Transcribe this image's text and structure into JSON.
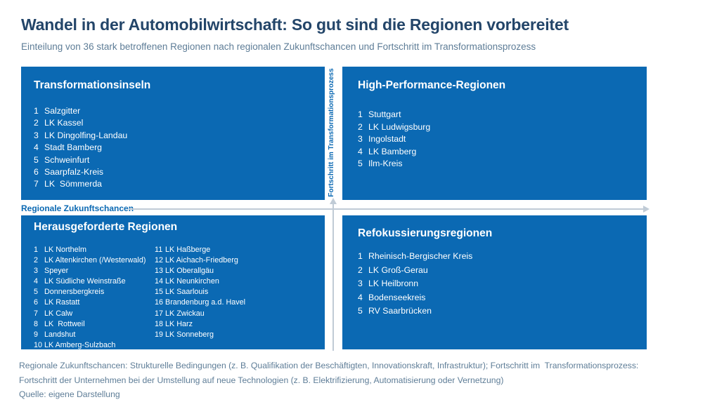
{
  "header": {
    "title": "Wandel in der Automobilwirtschaft: So gut sind die Regionen vorbereitet",
    "subtitle": "Einteilung von 36 stark betroffenen Regionen nach regionalen Zukunftschancen und Fortschritt im Transformationsprozess"
  },
  "chart_data": {
    "type": "table",
    "subtype": "2x2-quadrant-matrix",
    "title": "Wandel in der Automobilwirtschaft: So gut sind die Regionen vorbereitet",
    "xlabel": "Regionale Zukunftschancen",
    "ylabel": "Fortschritt im Transformationsprozess",
    "total_regions": 36,
    "legend_position": "none",
    "quadrants": [
      {
        "name": "Transformationsinseln",
        "x_level": "niedrig",
        "y_level": "hoch",
        "regions": [
          "Salzgitter",
          "LK Kassel",
          "LK Dingolfing-Landau",
          "Stadt Bamberg",
          "Schweinfurt",
          "Saarpfalz-Kreis",
          "LK  Sömmerda"
        ]
      },
      {
        "name": "High-Performance-Regionen",
        "x_level": "hoch",
        "y_level": "hoch",
        "regions": [
          "Stuttgart",
          "LK Ludwigsburg",
          "Ingolstadt",
          "LK Bamberg",
          "Ilm-Kreis"
        ]
      },
      {
        "name": "Herausgeforderte Regionen",
        "x_level": "niedrig",
        "y_level": "niedrig",
        "regions": [
          "LK Northelm",
          "LK Altenkirchen (/Westerwald)",
          "Speyer",
          "LK Südliche Weinstraße",
          "Donnersbergkreis",
          "LK Rastatt",
          "LK Calw",
          "LK  Rottweil",
          "Landshut",
          "LK Amberg-Sulzbach",
          "LK Haßberge",
          "LK Aichach-Friedberg",
          "LK Oberallgäu",
          "LK Neunkirchen",
          "LK Saarlouis",
          "Brandenburg a.d. Havel",
          "LK Zwickau",
          "LK Harz",
          "LK Sonneberg"
        ]
      },
      {
        "name": "Refokussierungsregionen",
        "x_level": "hoch",
        "y_level": "niedrig",
        "regions": [
          "Rheinisch-Bergischer Kreis",
          "LK Groß-Gerau",
          "LK Heilbronn",
          "Bodenseekreis",
          "RV Saarbrücken"
        ]
      }
    ]
  },
  "footer": {
    "lines": [
      "Regionale Zukunftschancen: Strukturelle Bedingungen (z. B. Qualifikation der Beschäftigten, Innovationskraft, Infrastruktur); Fortschritt im  Transformationsprozess:",
      "Fortschritt der Unternehmen bei der Umstellung auf neue Technologien (z. B. Elektrifizierung, Automatisierung oder Vernetzung)"
    ],
    "source": "Quelle: eigene Darstellung"
  },
  "colors": {
    "quadrant_fill": "#0b69b3",
    "title_text": "#234569",
    "muted_text": "#5e7d97",
    "axis_label": "#0b69b3",
    "axis_line": "#c0cbd6",
    "list_text": "#ffffff"
  }
}
